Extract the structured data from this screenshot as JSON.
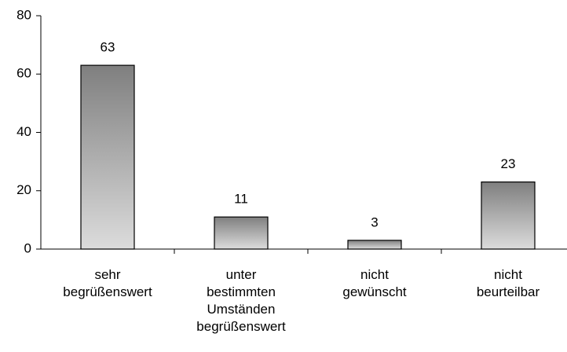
{
  "chart_data": {
    "type": "bar",
    "categories": [
      "sehr begrüßenswert",
      "unter bestimmten Umständen begrüßenswert",
      "nicht gewünscht",
      "nicht beurteilbar"
    ],
    "values": [
      63,
      11,
      3,
      23
    ],
    "color": "#808080",
    "ylim": [
      0,
      80
    ],
    "yticks": [
      0,
      20,
      40,
      60,
      80
    ],
    "grid": false
  }
}
